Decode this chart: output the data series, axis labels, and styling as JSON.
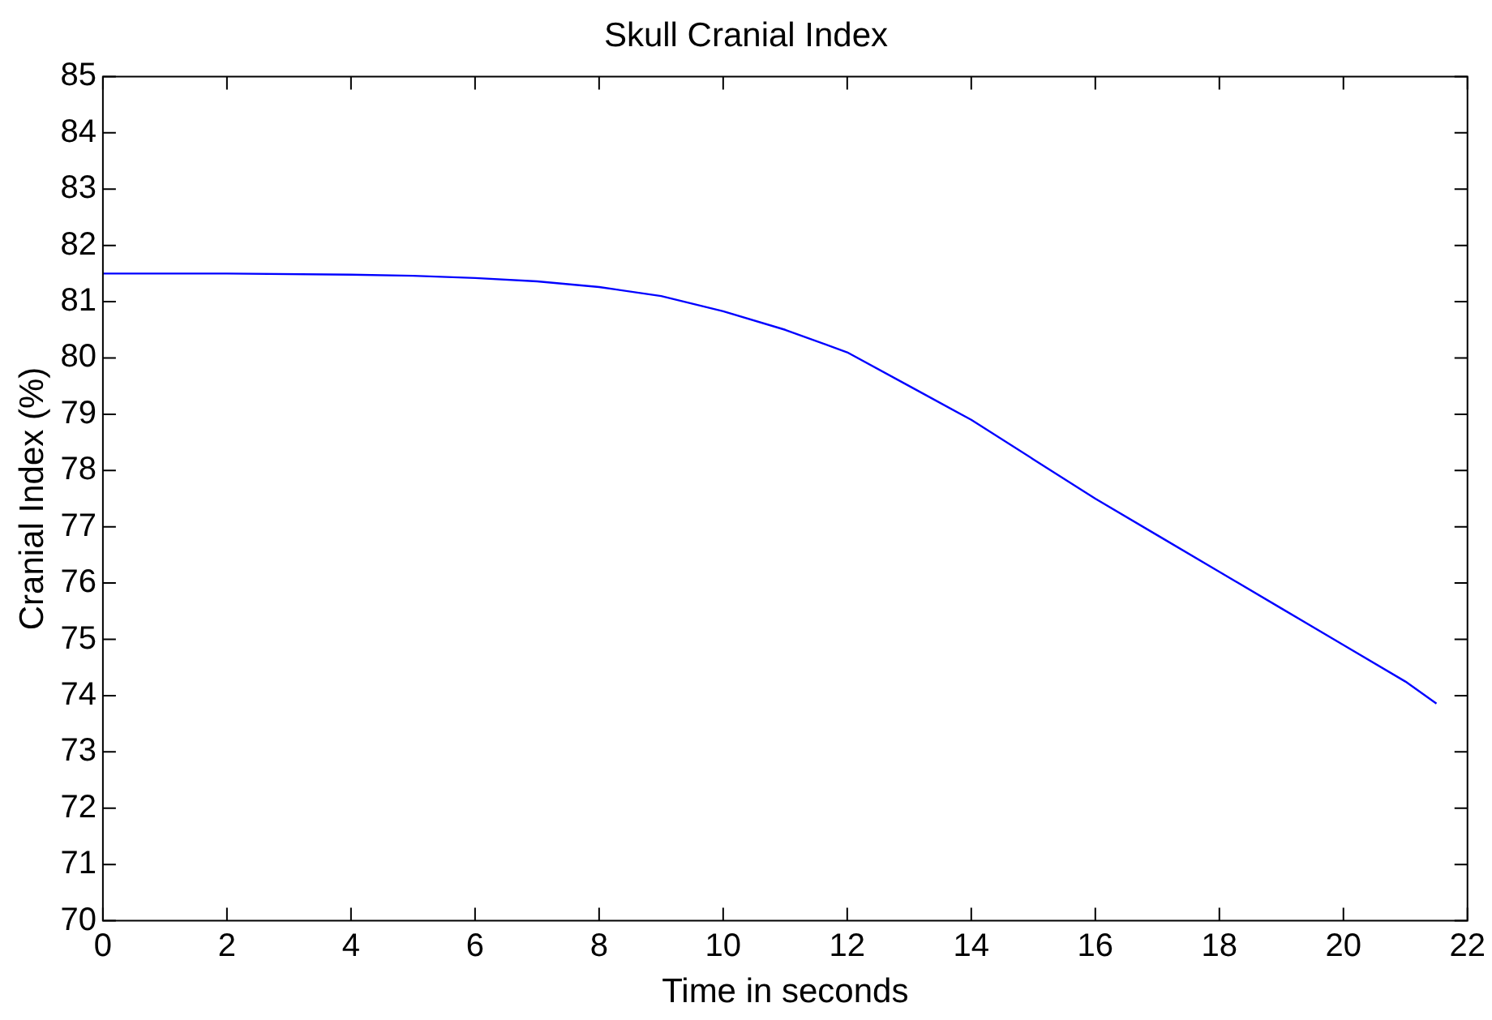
{
  "chart_data": {
    "type": "line",
    "title": "Skull Cranial Index",
    "xlabel": "Time in seconds",
    "ylabel": "Cranial Index (%)",
    "x": [
      0,
      2,
      4,
      5,
      6,
      7,
      8,
      9,
      10,
      11,
      12,
      13,
      14,
      15,
      16,
      17,
      18,
      19,
      20,
      21,
      21.5
    ],
    "series": [
      {
        "color": "#0000ff",
        "values": [
          81.5,
          81.5,
          81.48,
          81.46,
          81.42,
          81.36,
          81.26,
          81.1,
          80.83,
          80.5,
          80.1,
          79.5,
          78.9,
          78.2,
          77.5,
          76.85,
          76.2,
          75.55,
          74.9,
          74.25,
          73.86
        ]
      }
    ],
    "xlim": [
      0,
      22
    ],
    "xticks": [
      0,
      2,
      4,
      6,
      8,
      10,
      12,
      14,
      16,
      18,
      20,
      22
    ],
    "ylim": [
      70,
      85
    ],
    "yticks": [
      70,
      71,
      72,
      73,
      74,
      75,
      76,
      77,
      78,
      79,
      80,
      81,
      82,
      83,
      84,
      85
    ],
    "grid": false,
    "legend": false,
    "marker": "none",
    "line_style": "solid"
  }
}
